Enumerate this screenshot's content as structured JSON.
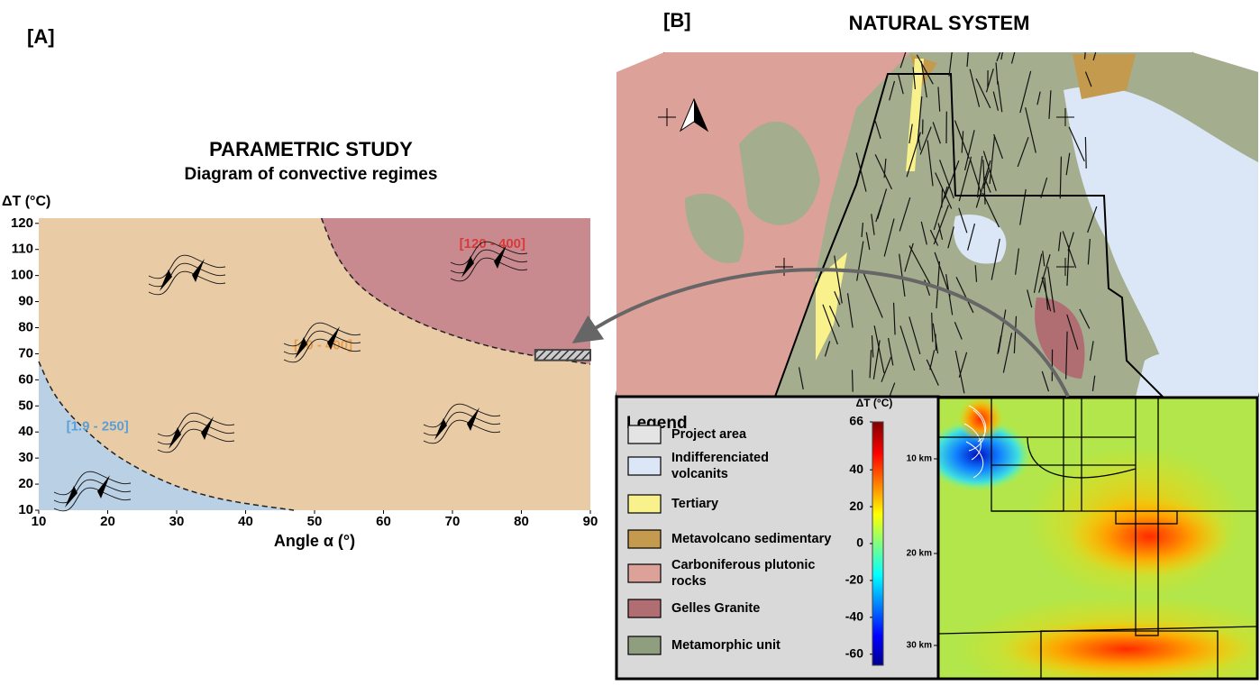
{
  "chart_data": {
    "type": "regime",
    "panel_label": "[A]",
    "title": "PARAMETRIC STUDY",
    "subtitle": "Diagram of convective regimes",
    "x_label": "Angle α (°)",
    "y_label": "ΔT (°C)",
    "xlim": [
      10,
      90
    ],
    "ylim": [
      10,
      122
    ],
    "xticks": [
      10,
      20,
      30,
      40,
      50,
      60,
      70,
      80,
      90
    ],
    "yticks": [
      10,
      20,
      30,
      40,
      50,
      60,
      70,
      80,
      90,
      100,
      110,
      120
    ],
    "background_color": "#e9cba6",
    "boundaries": [
      {
        "color": "#b9d0e5",
        "side": "below",
        "x": [
          10,
          12,
          15,
          20,
          25,
          30,
          35,
          40,
          47
        ],
        "values": [
          67,
          55,
          45,
          33,
          25,
          19,
          15,
          12.5,
          10
        ]
      },
      {
        "color": "#c98a8f",
        "side": "above",
        "x": [
          51,
          53,
          56,
          60,
          65,
          70,
          75,
          80,
          85,
          90
        ],
        "values": [
          122,
          108,
          97,
          89,
          82,
          77,
          73,
          70,
          68,
          66
        ]
      }
    ],
    "region_labels": [
      {
        "text": "[1.9 - 250]",
        "x": 14,
        "y": 42,
        "color": "#5aa0d8"
      },
      {
        "text": "[40 - 400]",
        "x": 47,
        "y": 73,
        "color": "#e8a050"
      },
      {
        "text": "[120 - 400]",
        "x": 71,
        "y": 112,
        "color": "#d83a3a"
      }
    ]
  },
  "map": {
    "panel_label": "[B]",
    "title": "NATURAL SYSTEM",
    "legend": {
      "title": "Legend",
      "items": [
        {
          "label": [
            "Project area"
          ],
          "color": "#e4e4e4"
        },
        {
          "label": [
            "Indifferenciated",
            "volcanits"
          ],
          "color": "#dbe7f6"
        },
        {
          "label": [
            "Tertiary"
          ],
          "color": "#f9f28c"
        },
        {
          "label": [
            "Metavolcano sedimentary"
          ],
          "color": "#c49a4f"
        },
        {
          "label": [
            "Carboniferous plutonic",
            "rocks"
          ],
          "color": "#dca198"
        },
        {
          "label": [
            "Gelles Granite"
          ],
          "color": "#b06e73"
        },
        {
          "label": [
            "Metamorphic unit"
          ],
          "color": "#8f9e7e"
        }
      ]
    },
    "colorbar": {
      "title": "ΔT (°C)",
      "lim": [
        -66,
        66
      ],
      "ticks": [
        66,
        40,
        20,
        0,
        -20,
        -40,
        -60
      ]
    },
    "depth_labels": [
      "10 km",
      "20 km",
      "30 km"
    ]
  }
}
